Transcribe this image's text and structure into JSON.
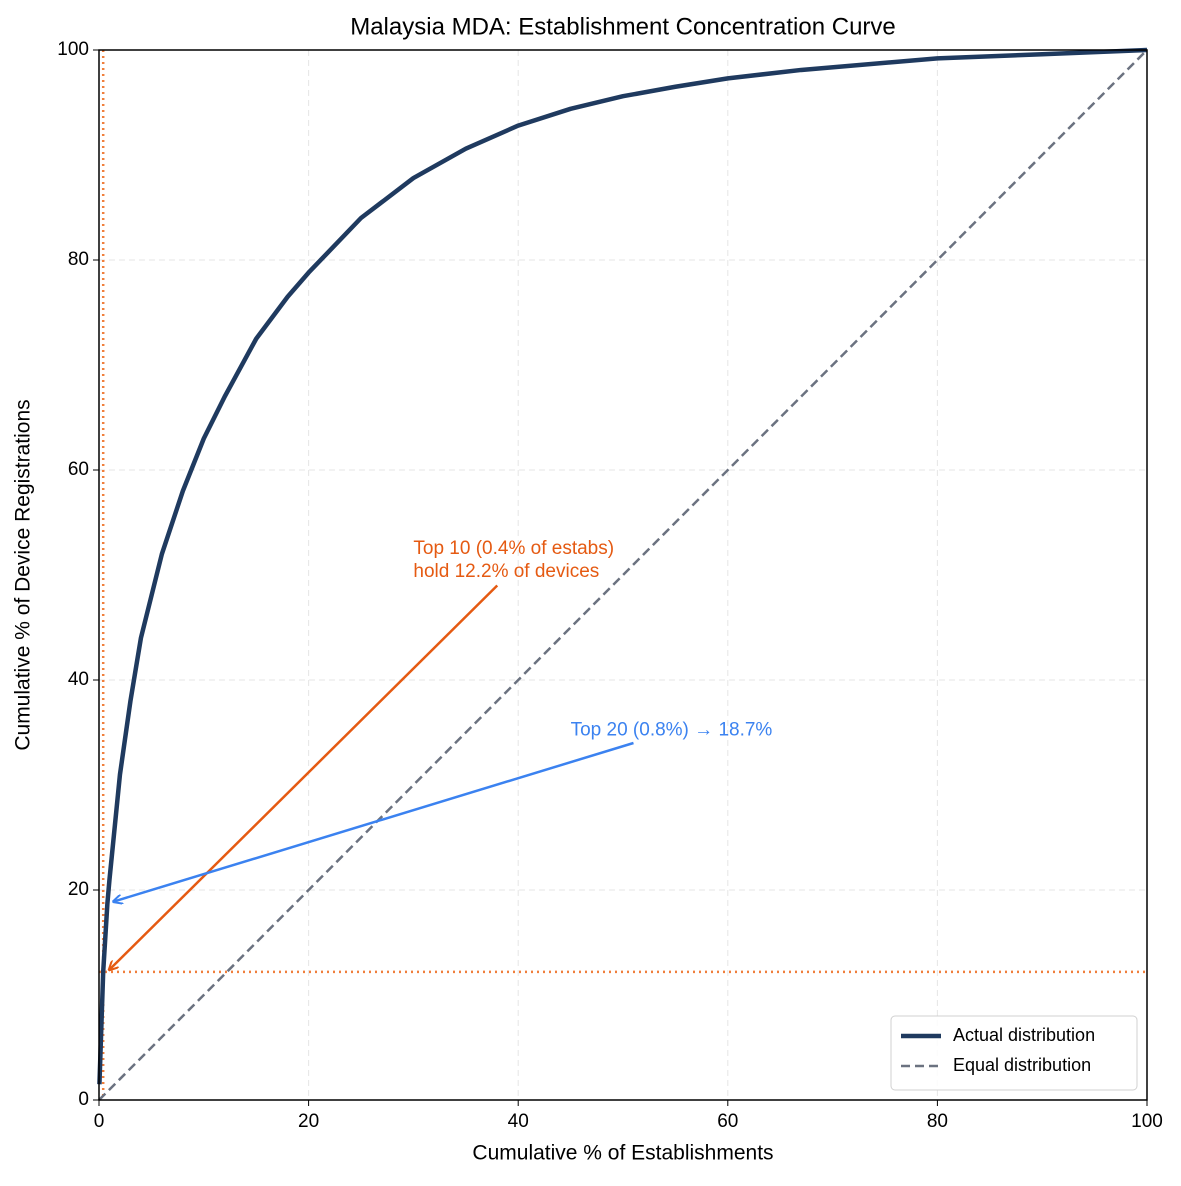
{
  "chart_data": {
    "type": "line",
    "title": "Malaysia MDA: Establishment Concentration Curve",
    "xlabel": "Cumulative % of Establishments",
    "ylabel": "Cumulative % of Device Registrations",
    "xlim": [
      0,
      100
    ],
    "ylim": [
      0,
      100
    ],
    "xticks": [
      0,
      20,
      40,
      60,
      80,
      100
    ],
    "yticks": [
      0,
      20,
      40,
      60,
      80,
      100
    ],
    "grid": true,
    "legend": "lower right",
    "series": [
      {
        "name": "Actual distribution",
        "color": "#1f3a5f",
        "style": "solid",
        "x": [
          0.04,
          0.4,
          0.8,
          1,
          2,
          3,
          4,
          5,
          6,
          8,
          10,
          12,
          15,
          18,
          20,
          25,
          30,
          35,
          40,
          45,
          50,
          55,
          60,
          67,
          80,
          90,
          100
        ],
        "values": [
          1.5,
          12.2,
          18.7,
          21,
          31,
          38,
          44,
          48,
          52,
          58,
          63,
          67,
          72.5,
          76.5,
          78.8,
          84,
          87.8,
          90.6,
          92.8,
          94.4,
          95.6,
          96.5,
          97.3,
          98.1,
          99.2,
          99.6,
          100
        ]
      },
      {
        "name": "Equal distribution",
        "color": "#6b7280",
        "style": "dashed",
        "x": [
          0,
          100
        ],
        "values": [
          0,
          100
        ]
      }
    ],
    "reference_lines": {
      "x": 0.4,
      "y": 12.2,
      "color": "#f07f3c"
    },
    "annotations": [
      {
        "text": [
          "Top 10 (0.4% of estabs)",
          "hold 12.2% of devices"
        ],
        "color": "#e55a12",
        "xy": [
          0.4,
          12.2
        ],
        "xytext": [
          30,
          52.5
        ],
        "arrow_from": [
          38,
          49
        ]
      },
      {
        "text": [
          "Top 20 (0.8%) → 18.7%"
        ],
        "color": "#3b82f0",
        "xy": [
          0.8,
          18.7
        ],
        "xytext": [
          45,
          35.2
        ],
        "arrow_from": [
          51,
          34
        ]
      }
    ]
  }
}
